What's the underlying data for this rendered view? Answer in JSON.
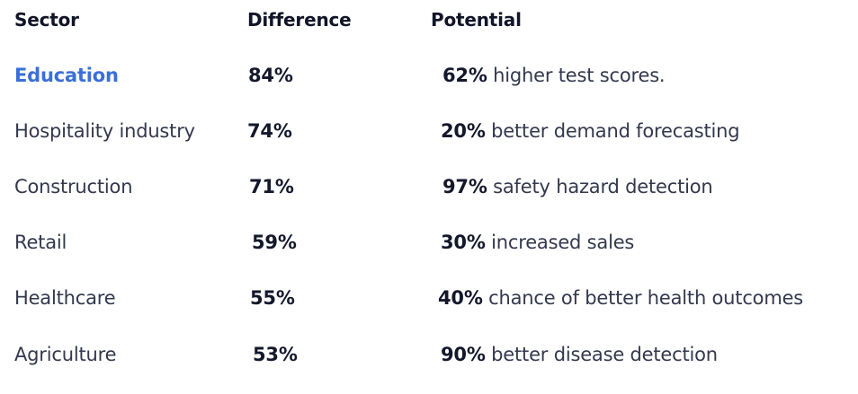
{
  "headers": {
    "sector": "Sector",
    "difference": "Difference",
    "potential": "Potential"
  },
  "rows": [
    {
      "sector": "Education",
      "difference": "84%",
      "potential_value": "62%",
      "potential_text": " higher test scores."
    },
    {
      "sector": "Hospitality industry",
      "difference": "74%",
      "potential_value": "20%",
      "potential_text": " better demand forecasting"
    },
    {
      "sector": "Construction",
      "difference": "71%",
      "potential_value": "97%",
      "potential_text": " safety hazard detection"
    },
    {
      "sector": "Retail",
      "difference": "59%",
      "potential_value": "30%",
      "potential_text": " increased sales"
    },
    {
      "sector": "Healthcare",
      "difference": "55%",
      "potential_value": "40%",
      "potential_text": " chance of better health outcomes"
    },
    {
      "sector": "Agriculture",
      "difference": "53%",
      "potential_value": "90%",
      "potential_text": " better disease detection"
    }
  ],
  "colors": {
    "highlight": "#3a6fd8",
    "text": "#33384d",
    "bold_text": "#14182b"
  }
}
